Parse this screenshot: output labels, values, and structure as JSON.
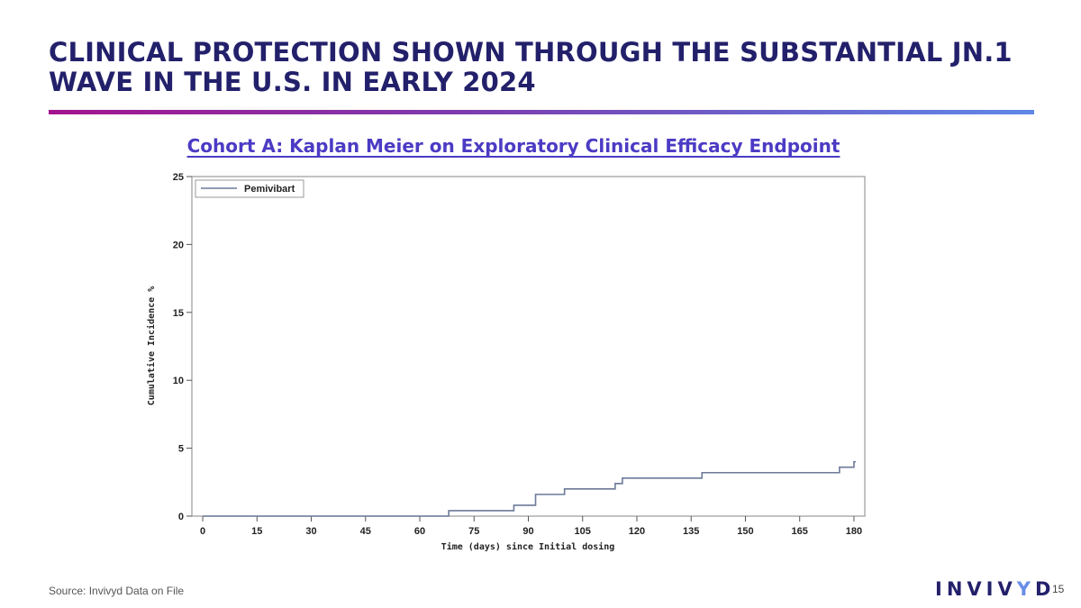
{
  "slide": {
    "title": "CLINICAL PROTECTION SHOWN THROUGH THE SUBSTANTIAL JN.1 WAVE IN THE U.S. IN EARLY 2024",
    "source": "Source: Invivyd Data on File",
    "page_number": "15",
    "logo_text": "INVIVYD",
    "colors": {
      "title": "#23206b",
      "chart_heading": "#4b3bc4",
      "rule_gradient": [
        "#a3148f",
        "#5f87e8"
      ],
      "series_line": "#6b7a99"
    }
  },
  "chart_data": {
    "type": "line",
    "title": "Cohort A: Kaplan Meier on Exploratory Clinical Efficacy Endpoint",
    "xlabel": "Time (days) since Initial dosing",
    "ylabel": "Cumulative Incidence %",
    "xlim": [
      -3,
      183
    ],
    "ylim": [
      0,
      25
    ],
    "x_ticks": [
      0,
      15,
      30,
      45,
      60,
      75,
      90,
      105,
      120,
      135,
      150,
      165,
      180
    ],
    "y_ticks": [
      0,
      5,
      10,
      15,
      20,
      25
    ],
    "grid": false,
    "legend_position": "top-left",
    "step": true,
    "series": [
      {
        "name": "Pemivibart",
        "color": "#6b7a99",
        "x": [
          0,
          68,
          86,
          92,
          100,
          114,
          116,
          138,
          176,
          180,
          180.5
        ],
        "y": [
          0,
          0.4,
          0.8,
          1.6,
          2.0,
          2.4,
          2.8,
          3.2,
          3.6,
          4.0,
          4.0
        ]
      }
    ]
  }
}
